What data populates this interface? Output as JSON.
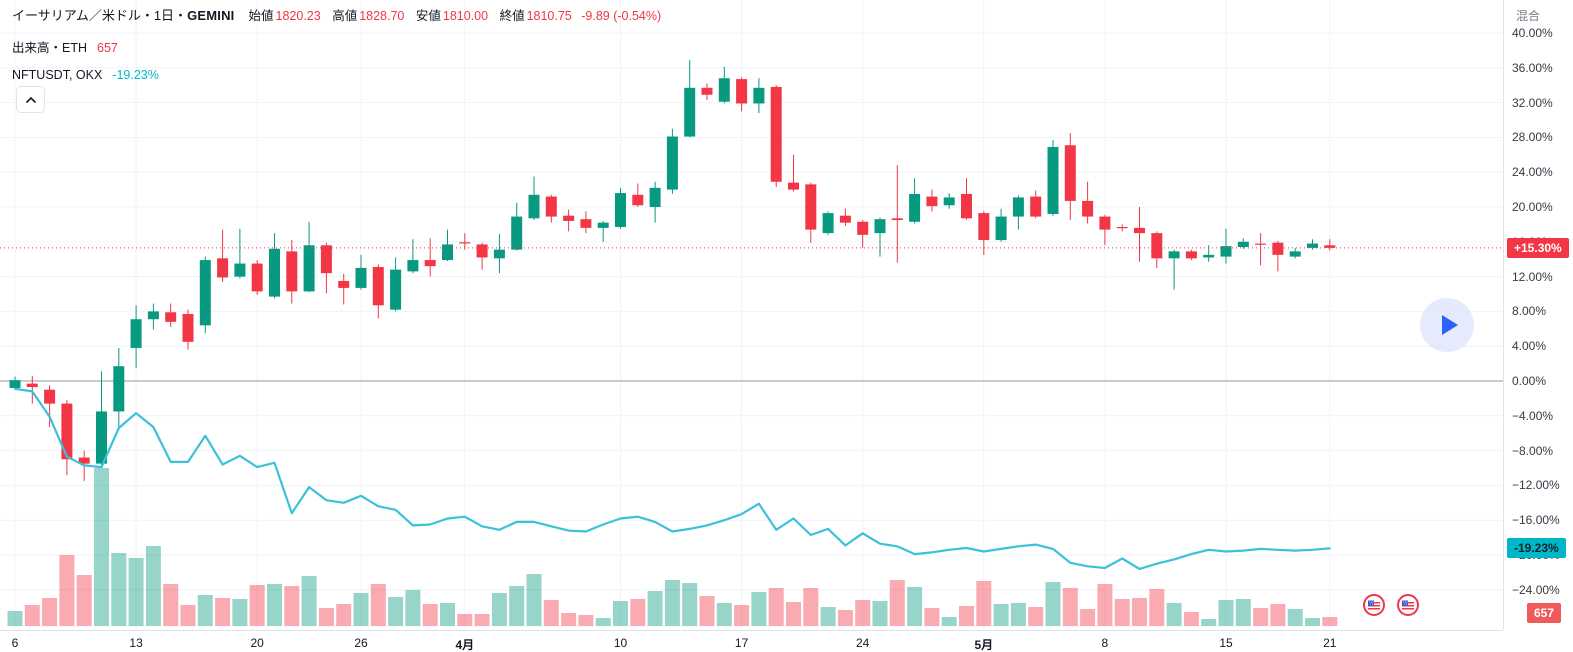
{
  "header": {
    "symbol_title": "イーサリアム／米ドル・1日・",
    "exchange": "GEMINI",
    "ohlc": {
      "open_label": "始値",
      "open": "1820.23",
      "high_label": "高値",
      "high": "1828.70",
      "low_label": "安値",
      "low": "1810.00",
      "close_label": "終値",
      "close": "1810.75",
      "change": "-9.89 (-0.54%)"
    },
    "volume_row": {
      "label": "出来高・ETH",
      "value": "657"
    },
    "indicator_row": {
      "label": "NFTUSDT, OKX",
      "value": "-19.23%"
    },
    "collapse_button_icon": "chevron-up"
  },
  "price_scale": {
    "unit_label": "混合",
    "tick_values": [
      40,
      36,
      32,
      28,
      24,
      20,
      16,
      12,
      8,
      4,
      0,
      -4,
      -8,
      -12,
      -16,
      -20,
      -24
    ],
    "tick_suffix": "%",
    "last_price_badge": "+15.30%",
    "indicator_badge": "-19.23%",
    "volume_badge": "657"
  },
  "time_scale": {
    "labels": [
      {
        "text": "6",
        "index": 0,
        "month": false
      },
      {
        "text": "13",
        "index": 7,
        "month": false
      },
      {
        "text": "20",
        "index": 14,
        "month": false
      },
      {
        "text": "26",
        "index": 20,
        "month": false
      },
      {
        "text": "4月",
        "index": 26,
        "month": true
      },
      {
        "text": "10",
        "index": 35,
        "month": false
      },
      {
        "text": "17",
        "index": 42,
        "month": false
      },
      {
        "text": "24",
        "index": 49,
        "month": false
      },
      {
        "text": "5月",
        "index": 56,
        "month": true
      },
      {
        "text": "8",
        "index": 63,
        "month": false
      },
      {
        "text": "15",
        "index": 70,
        "month": false
      },
      {
        "text": "21",
        "index": 76,
        "month": false
      }
    ]
  },
  "colors": {
    "up": "#089981",
    "down": "#f23645",
    "vol_up": "rgba(8,153,129,0.42)",
    "vol_down": "rgba(242,54,69,0.42)",
    "nft_line": "#3bc1d9",
    "last_price_line": "#f23645",
    "zero_line": "#9598a1",
    "grid": "#f0f3fa",
    "accent_blue": "#2962ff"
  },
  "chart_data": {
    "type": "candlestick+line+volume",
    "title": "イーサリアム／米ドル・1日・GEMINI",
    "y_unit": "percent_change",
    "ylim": [
      -26,
      42
    ],
    "grid_step": 4,
    "last_close_pct": 15.3,
    "nft_last_pct": -19.23,
    "candles_ohlc_pct": [
      [
        -0.8,
        0.5,
        -1.0,
        0.1
      ],
      [
        -0.3,
        0.6,
        -2.6,
        -0.7
      ],
      [
        -1.0,
        -0.5,
        -5.3,
        -2.6
      ],
      [
        -2.6,
        -2.2,
        -10.8,
        -9.0
      ],
      [
        -8.8,
        -8.0,
        -11.5,
        -9.5
      ],
      [
        -9.5,
        1.1,
        -9.9,
        -3.5
      ],
      [
        -3.5,
        3.8,
        -5.7,
        1.7
      ],
      [
        3.8,
        8.7,
        1.5,
        7.1
      ],
      [
        7.1,
        8.9,
        5.9,
        8.0
      ],
      [
        7.9,
        8.9,
        6.2,
        6.8
      ],
      [
        7.7,
        8.2,
        3.6,
        4.5
      ],
      [
        6.4,
        14.3,
        5.5,
        13.9
      ],
      [
        14.1,
        17.4,
        11.4,
        11.9
      ],
      [
        12.0,
        17.5,
        11.8,
        13.5
      ],
      [
        13.5,
        13.9,
        9.9,
        10.3
      ],
      [
        9.7,
        17.0,
        9.5,
        15.2
      ],
      [
        14.9,
        16.2,
        8.9,
        10.3
      ],
      [
        10.3,
        18.3,
        10.2,
        15.6
      ],
      [
        15.6,
        15.9,
        10.1,
        12.4
      ],
      [
        11.5,
        12.3,
        8.8,
        10.7
      ],
      [
        10.7,
        14.5,
        10.5,
        13.0
      ],
      [
        13.1,
        13.4,
        7.2,
        8.7
      ],
      [
        8.2,
        14.2,
        8.0,
        12.8
      ],
      [
        12.6,
        16.3,
        12.4,
        13.9
      ],
      [
        13.9,
        16.4,
        12.0,
        13.2
      ],
      [
        13.9,
        17.4,
        13.8,
        15.7
      ],
      [
        15.95,
        17.0,
        15.1,
        15.85
      ],
      [
        15.7,
        15.9,
        12.8,
        14.2
      ],
      [
        14.1,
        16.9,
        12.4,
        15.1
      ],
      [
        15.1,
        20.5,
        15.0,
        18.9
      ],
      [
        18.7,
        23.5,
        18.5,
        21.4
      ],
      [
        21.2,
        21.4,
        18.2,
        18.9
      ],
      [
        19.0,
        19.7,
        17.2,
        18.4
      ],
      [
        18.6,
        19.5,
        17.0,
        17.6
      ],
      [
        17.6,
        18.4,
        16.0,
        18.2
      ],
      [
        17.7,
        22.2,
        17.5,
        21.6
      ],
      [
        21.4,
        22.7,
        20.0,
        20.2
      ],
      [
        20.0,
        22.9,
        18.2,
        22.2
      ],
      [
        22.0,
        29.0,
        21.5,
        28.1
      ],
      [
        28.1,
        36.9,
        28.0,
        33.7
      ],
      [
        33.7,
        34.2,
        32.3,
        32.9
      ],
      [
        32.1,
        36.1,
        31.9,
        34.8
      ],
      [
        34.7,
        34.9,
        31.0,
        31.9
      ],
      [
        31.9,
        34.8,
        30.8,
        33.7
      ],
      [
        33.8,
        34.0,
        22.3,
        22.9
      ],
      [
        22.8,
        26.0,
        21.8,
        22.0
      ],
      [
        22.6,
        22.8,
        15.9,
        17.4
      ],
      [
        17.0,
        19.5,
        16.8,
        19.3
      ],
      [
        19.0,
        19.8,
        17.8,
        18.2
      ],
      [
        18.3,
        18.5,
        15.3,
        16.8
      ],
      [
        17.0,
        18.8,
        14.3,
        18.6
      ],
      [
        18.7,
        24.8,
        13.6,
        18.5
      ],
      [
        18.3,
        23.3,
        18.1,
        21.5
      ],
      [
        21.2,
        22.0,
        19.5,
        20.1
      ],
      [
        20.2,
        21.6,
        19.8,
        21.1
      ],
      [
        21.5,
        23.3,
        18.5,
        18.7
      ],
      [
        19.3,
        19.5,
        14.5,
        16.2
      ],
      [
        16.2,
        19.8,
        16.0,
        18.9
      ],
      [
        18.9,
        21.3,
        17.4,
        21.1
      ],
      [
        21.2,
        21.9,
        18.7,
        18.9
      ],
      [
        19.2,
        27.7,
        19.0,
        26.9
      ],
      [
        27.1,
        28.5,
        18.5,
        20.7
      ],
      [
        20.7,
        22.9,
        18.1,
        18.9
      ],
      [
        18.9,
        19.1,
        15.6,
        17.4
      ],
      [
        17.7,
        18.0,
        17.2,
        17.6
      ],
      [
        17.6,
        20.0,
        13.7,
        17.0
      ],
      [
        17.0,
        17.2,
        13.0,
        14.1
      ],
      [
        14.1,
        15.1,
        10.5,
        14.9
      ],
      [
        14.9,
        15.1,
        13.9,
        14.1
      ],
      [
        14.2,
        15.6,
        13.7,
        14.5
      ],
      [
        14.3,
        17.5,
        13.5,
        15.5
      ],
      [
        15.4,
        16.4,
        15.2,
        16.0
      ],
      [
        15.8,
        17.0,
        13.3,
        15.75
      ],
      [
        15.9,
        16.1,
        12.6,
        14.5
      ],
      [
        14.3,
        15.3,
        14.1,
        14.9
      ],
      [
        15.3,
        16.3,
        15.1,
        15.8
      ],
      [
        15.6,
        16.3,
        15.0,
        15.3
      ]
    ],
    "volume_relative_heights": [
      15,
      21,
      28,
      71,
      51,
      158,
      73,
      68,
      80,
      42,
      21,
      31,
      28,
      27,
      41,
      42,
      40,
      50,
      18,
      22,
      33,
      42,
      29,
      36,
      22,
      23,
      12,
      12,
      33,
      40,
      52,
      26,
      13,
      11,
      8,
      25,
      27,
      35,
      46,
      43,
      30,
      23,
      21,
      34,
      38,
      24,
      38,
      19,
      16,
      26,
      25,
      46,
      39,
      18,
      9,
      20,
      45,
      22,
      23,
      19,
      44,
      38,
      17,
      42,
      27,
      28,
      37,
      23,
      14,
      7,
      26,
      27,
      18,
      22,
      17,
      8,
      9
    ],
    "nft_line_pct": [
      -0.9,
      -1.2,
      -4.1,
      -8.7,
      -9.7,
      -9.9,
      -5.4,
      -3.7,
      -5.3,
      -9.3,
      -9.3,
      -6.3,
      -9.6,
      -8.6,
      -9.9,
      -9.4,
      -15.2,
      -12.2,
      -13.7,
      -14.0,
      -13.2,
      -14.4,
      -14.8,
      -16.6,
      -16.5,
      -15.8,
      -15.6,
      -16.7,
      -17.1,
      -16.2,
      -16.2,
      -16.7,
      -17.2,
      -17.3,
      -16.5,
      -15.8,
      -15.6,
      -16.2,
      -17.3,
      -17.0,
      -16.6,
      -16.0,
      -15.3,
      -14.1,
      -17.1,
      -15.8,
      -17.7,
      -17.0,
      -18.9,
      -17.5,
      -18.7,
      -19.0,
      -19.9,
      -19.7,
      -19.4,
      -19.2,
      -19.6,
      -19.3,
      -19.0,
      -18.8,
      -19.3,
      -20.9,
      -21.3,
      -21.5,
      -20.4,
      -21.6,
      -21.0,
      -20.5,
      -19.9,
      -19.4,
      -19.6,
      -19.5,
      -19.3,
      -19.4,
      -19.5,
      -19.4,
      -19.23
    ]
  },
  "overlays": {
    "event_flags_count": 2,
    "event_flag_name": "us-flag-event-marker"
  }
}
